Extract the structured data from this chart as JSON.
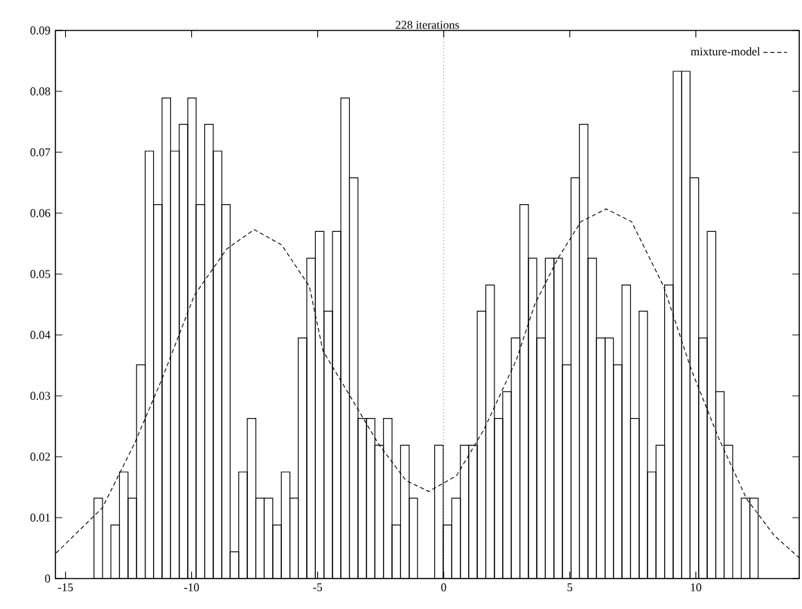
{
  "chart_data": {
    "type": "histogram",
    "title": "228 iterations",
    "xlim": [
      -15.4,
      14.1
    ],
    "ylim": [
      0,
      0.09
    ],
    "xticks": [
      -15,
      -10,
      -5,
      0,
      5,
      10
    ],
    "yticks": [
      0,
      0.01,
      0.02,
      0.03,
      0.04,
      0.05,
      0.06,
      0.07,
      0.08,
      0.09
    ],
    "grid": false,
    "legend": "top right",
    "ref_lines": [
      {
        "axis": "x",
        "value": 0,
        "line_style": "dotted",
        "color": "#000000"
      }
    ],
    "series": [
      {
        "color": "#000000",
        "bins": [
          -13.87,
          -13.53,
          -13.2,
          -12.86,
          -12.52,
          -12.18,
          -11.84,
          -11.51,
          -11.17,
          -10.83,
          -10.49,
          -10.15,
          -9.82,
          -9.48,
          -9.14,
          -8.8,
          -8.47,
          -8.13,
          -7.79,
          -7.45,
          -7.12,
          -6.78,
          -6.44,
          -6.1,
          -5.77,
          -5.43,
          -5.09,
          -4.75,
          -4.41,
          -4.08,
          -3.74,
          -3.4,
          -3.06,
          -2.73,
          -2.39,
          -2.05,
          -1.71,
          -1.37,
          -1.04,
          -0.7,
          -0.36,
          -0.02,
          0.32,
          0.66,
          0.99,
          1.33,
          1.67,
          2.01,
          2.34,
          2.68,
          3.02,
          3.36,
          3.69,
          4.03,
          4.37,
          4.71,
          5.05,
          5.38,
          5.72,
          6.06,
          6.4,
          6.73,
          7.07,
          7.41,
          7.75,
          8.08,
          8.42,
          8.76,
          9.1,
          9.44,
          9.77,
          10.11,
          10.45,
          10.79,
          11.12,
          11.46,
          11.8,
          12.14,
          12.47
        ],
        "values": [
          0.0132,
          0,
          0.0088,
          0.0175,
          0.0132,
          0.0351,
          0.0702,
          0.0614,
          0.0789,
          0.0702,
          0.0746,
          0.0789,
          0.0614,
          0.0746,
          0.0702,
          0.0614,
          0.0044,
          0.0175,
          0.0263,
          0.0132,
          0.0132,
          0.0088,
          0.0175,
          0.0132,
          0.0395,
          0.0526,
          0.057,
          0.0439,
          0.057,
          0.0789,
          0.0658,
          0.0263,
          0.0263,
          0.0219,
          0.0263,
          0.0088,
          0.0219,
          0.0132,
          0,
          0,
          0.0219,
          0.0088,
          0.0132,
          0.0219,
          0.0219,
          0.0439,
          0.0482,
          0.0263,
          0.0307,
          0.0395,
          0.0614,
          0.0526,
          0.0395,
          0.0526,
          0.0526,
          0.0351,
          0.0658,
          0.0746,
          0.0526,
          0.0395,
          0.0395,
          0.0351,
          0.0482,
          0.0263,
          0.0439,
          0.0175,
          0.0219,
          0.0482,
          0.0833,
          0.0833,
          0.0658,
          0.0395,
          0.057,
          0.0307,
          0.0219,
          0,
          0.0132,
          0.0132
        ]
      },
      {
        "type": "line",
        "name": "mixture-model",
        "color": "#000000",
        "line_style": "dashed",
        "marker": "none",
        "x": [
          -15.37,
          -13.54,
          -12.26,
          -11.17,
          -9.89,
          -8.61,
          -7.52,
          -6.43,
          -5.33,
          -4.79,
          -3.69,
          -2.6,
          -1.5,
          -0.59,
          0.51,
          1.6,
          2.88,
          3.61,
          4.52,
          5.44,
          6.44,
          7.45,
          8.72,
          9.82,
          10.91,
          12.01,
          13.1,
          14.1
        ],
        "values": [
          0.0042,
          0.0116,
          0.0222,
          0.0328,
          0.0465,
          0.0541,
          0.0573,
          0.0548,
          0.048,
          0.0374,
          0.0298,
          0.0222,
          0.0161,
          0.0143,
          0.0169,
          0.0245,
          0.0359,
          0.045,
          0.0525,
          0.0586,
          0.0607,
          0.0586,
          0.048,
          0.0343,
          0.023,
          0.0131,
          0.0071,
          0.0034
        ]
      }
    ]
  }
}
